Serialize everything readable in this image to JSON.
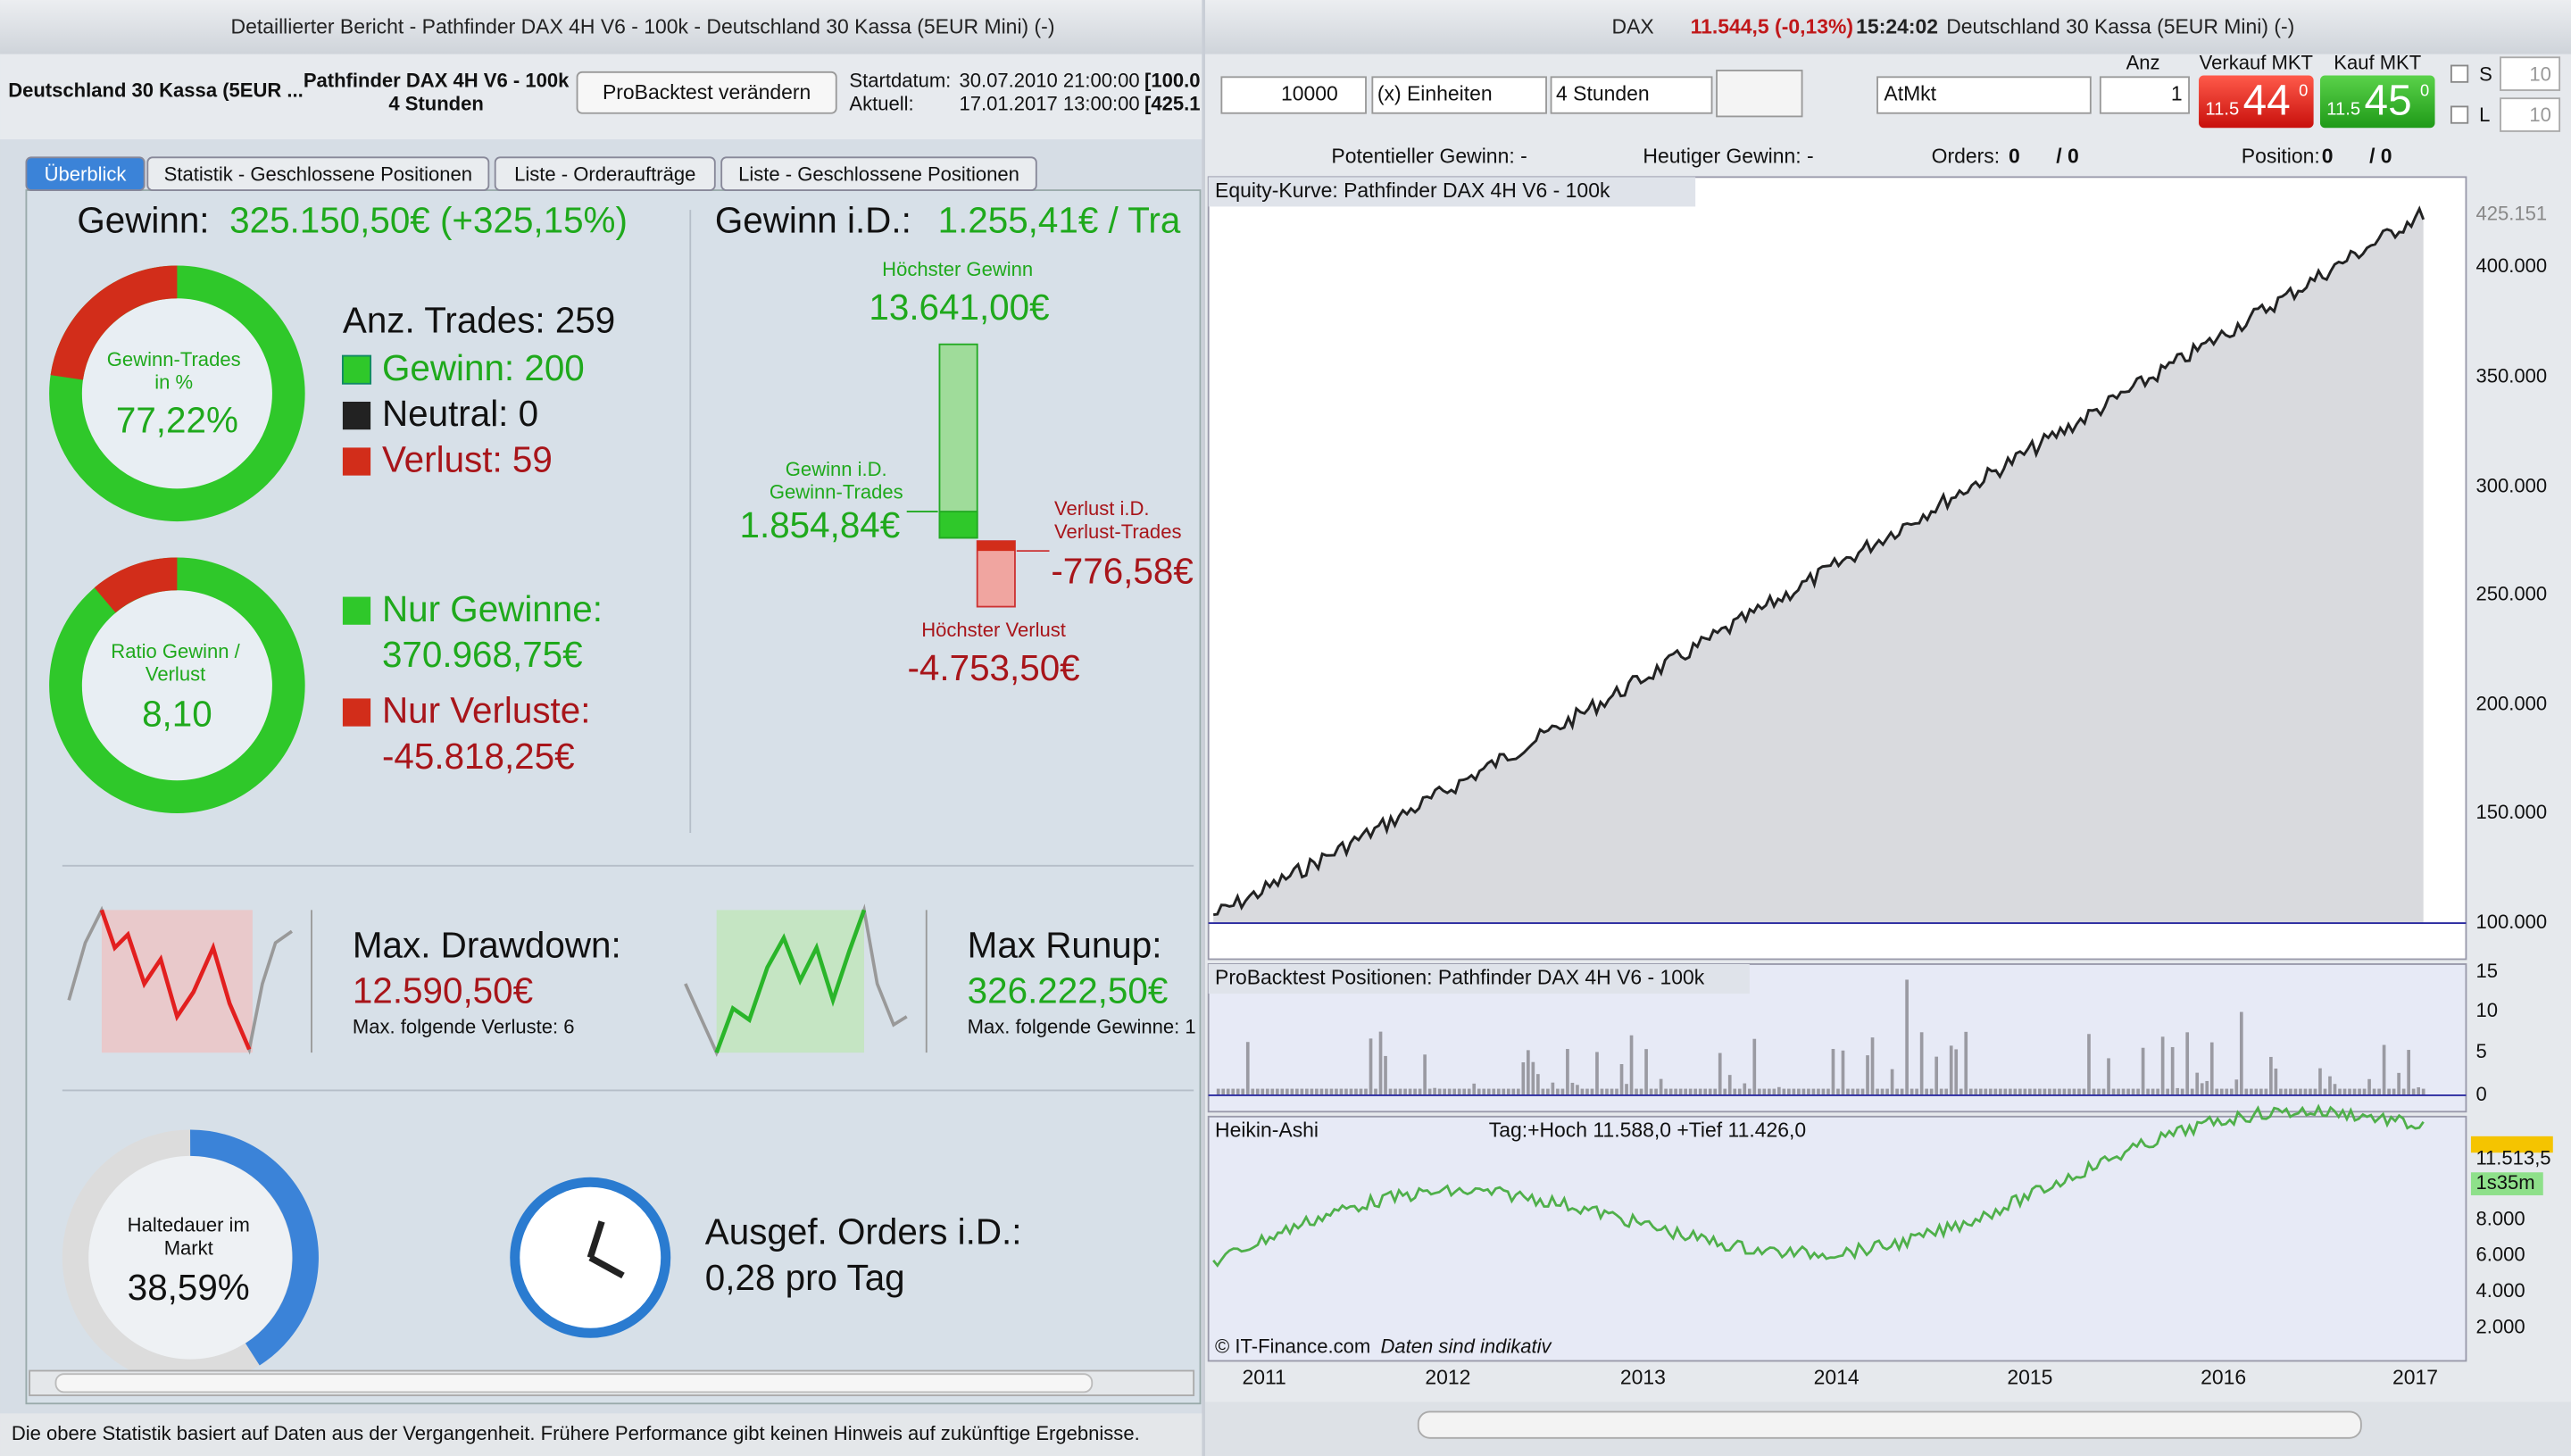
{
  "left_window": {
    "title": "Detaillierter Bericht - Pathfinder DAX 4H V6 - 100k - Deutschland 30 Kassa (5EUR Mini) (-)",
    "header": {
      "instrument": "Deutschland 30 Kassa (5EUR ...",
      "system": "Pathfinder DAX 4H V6 - 100k",
      "timeframe": "4 Stunden",
      "button": "ProBacktest verändern",
      "start_label": "Startdatum:",
      "start": "30.07.2010 21:00:00",
      "start_extra": "[100.0",
      "current_label": "Aktuell:",
      "current": "17.01.2017 13:00:00",
      "current_extra": "[425.1"
    },
    "tabs": [
      "Überblick",
      "Statistik - Geschlossene Positionen",
      "Liste - Orderaufträge",
      "Liste - Geschlossene Positionen"
    ],
    "gewinn": {
      "label": "Gewinn:",
      "value": "325.150,50€ (+325,15%)"
    },
    "donut_trades": {
      "label_1": "Gewinn-Trades",
      "label_2": "in %",
      "value": "77,22%"
    },
    "trades": {
      "total": "Anz. Trades: 259",
      "win": "Gewinn: 200",
      "neutral": "Neutral: 0",
      "loss": "Verlust: 59"
    },
    "donut_ratio": {
      "label_1": "Ratio Gewinn /",
      "label_2": "Verlust",
      "value": "8,10"
    },
    "totals": {
      "win_label": "Nur Gewinne:",
      "win": "370.968,75€",
      "loss_label": "Nur Verluste:",
      "loss": "-45.818,25€"
    },
    "gewinn_id": {
      "label": "Gewinn i.D.:",
      "value": "1.255,41€ / Tra"
    },
    "best": {
      "label": "Höchster Gewinn",
      "value": "13.641,00€"
    },
    "avg_win": {
      "label_1": "Gewinn i.D.",
      "label_2": "Gewinn-Trades",
      "value": "1.854,84€"
    },
    "avg_loss": {
      "label_1": "Verlust i.D.",
      "label_2": "Verlust-Trades",
      "value": "-776,58€"
    },
    "worst": {
      "label": "Höchster Verlust",
      "value": "-4.753,50€"
    },
    "drawdown": {
      "label": "Max. Drawdown:",
      "value": "12.590,50€",
      "note": "Max. folgende Verluste: 6"
    },
    "runup": {
      "label": "Max Runup:",
      "value": "326.222,50€",
      "note": "Max. folgende Gewinne: 1"
    },
    "holding": {
      "label_1": "Haltedauer im",
      "label_2": "Markt",
      "value": "38,59%"
    },
    "orders": {
      "label": "Ausgef. Orders i.D.:",
      "value": "0,28 pro Tag"
    },
    "footer": "Die obere Statistik basiert auf Daten aus der Vergangenheit. Frühere Performance gibt keinen Hinweis auf zukünftige Ergebnisse."
  },
  "right_window": {
    "title": {
      "symbol": "DAX",
      "price": "11.544,5 (-0,13%)",
      "time": "15:24:02",
      "name": "Deutschland 30 Kassa (5EUR Mini) (-)"
    },
    "toolbar": {
      "quantity": "10000",
      "units": "(x) Einheiten",
      "timeframe": "4 Stunden",
      "order_type": "AtMkt",
      "anz_label": "Anz",
      "anz": "1",
      "sell_label": "Verkauf MKT",
      "buy_label": "Kauf MKT",
      "sell_prefix": "11.5",
      "sell_main": "44",
      "sell_sup": "0",
      "buy_prefix": "11.5",
      "buy_main": "45",
      "buy_sup": "0",
      "s_label": "S",
      "s_value": "10",
      "l_label": "L",
      "l_value": "10"
    },
    "info": {
      "potential": "Potentieller Gewinn: -",
      "today": "Heutiger Gewinn: -",
      "orders_label": "Orders:",
      "orders_a": "0",
      "orders_b": "/ 0",
      "position_label": "Position:",
      "position_a": "0",
      "position_b": "/ 0"
    },
    "equity": {
      "title": "Equity-Kurve: Pathfinder DAX 4H V6 - 100k",
      "yticks": [
        "425.151",
        "400.000",
        "350.000",
        "300.000",
        "250.000",
        "200.000",
        "150.000",
        "100.000"
      ]
    },
    "positions": {
      "title": "ProBacktest Positionen: Pathfinder DAX 4H V6 - 100k",
      "yticks": [
        "15",
        "10",
        "5",
        "0"
      ]
    },
    "price": {
      "title": "Heikin-Ashi",
      "info": "Tag:+Hoch 11.588,0 +Tief 11.426,0",
      "last": "11.513,5",
      "countdown": "1s35m",
      "yticks": [
        "8.000",
        "6.000",
        "4.000",
        "2.000"
      ],
      "copyright": "© IT-Finance.com",
      "note": "Daten sind indikativ"
    },
    "xticks": [
      "2011",
      "2012",
      "2013",
      "2014",
      "2015",
      "2016",
      "2017"
    ]
  }
}
